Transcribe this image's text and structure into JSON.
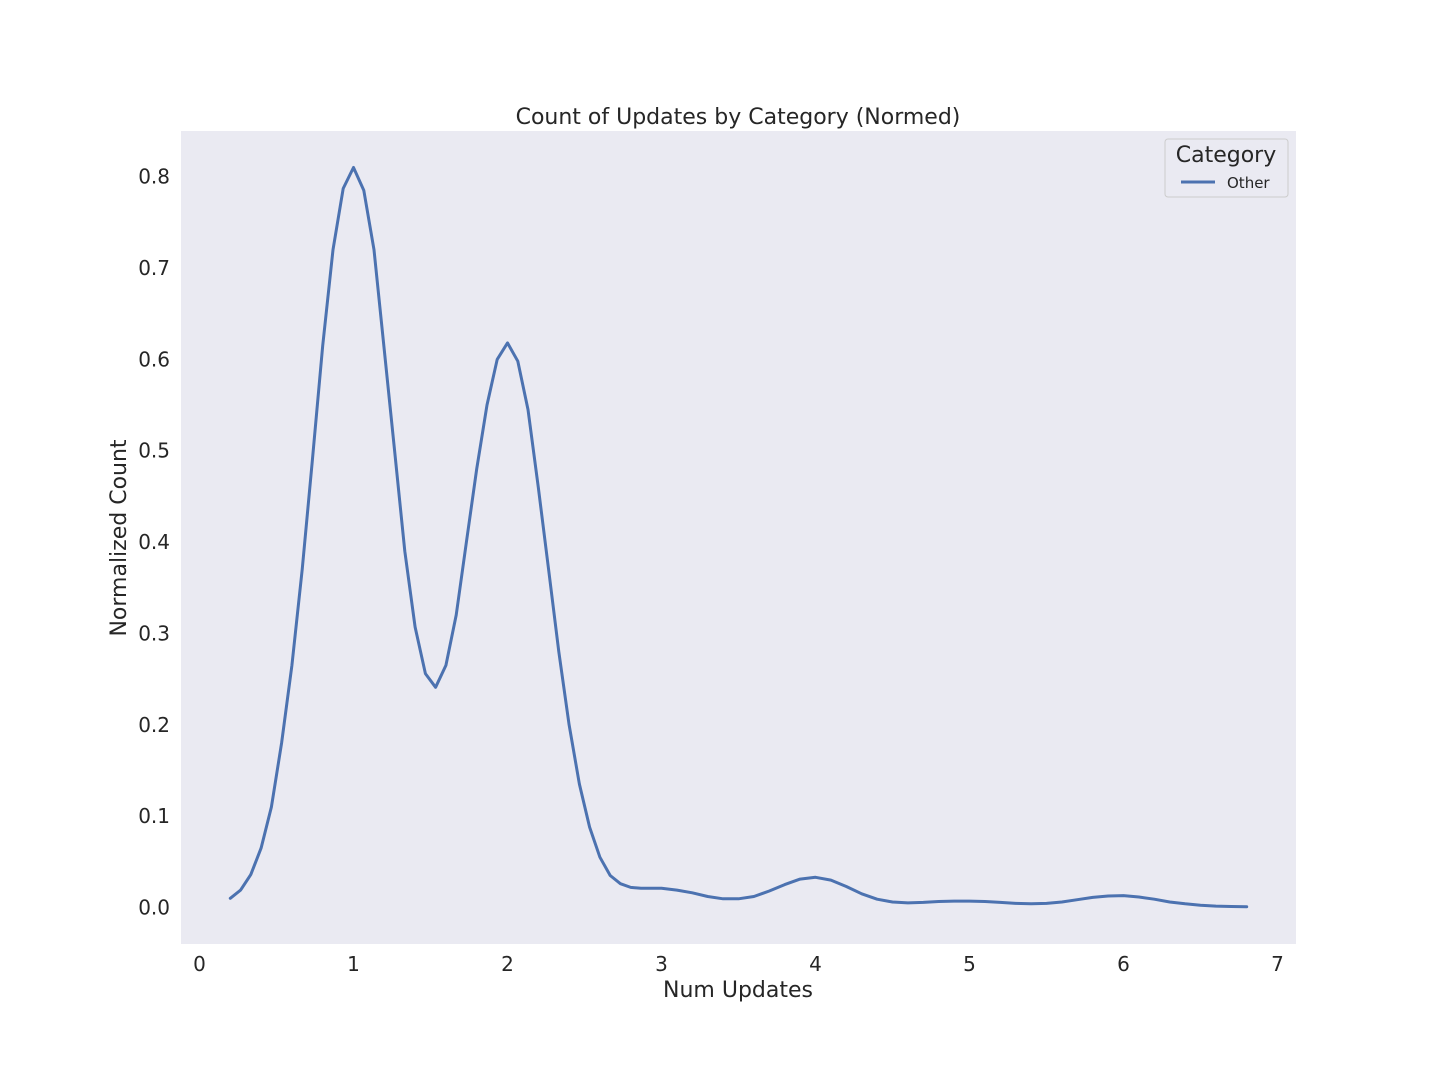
{
  "chart_data": {
    "type": "line",
    "title": "Count of Updates by Category (Normed)",
    "xlabel": "Num Updates",
    "ylabel": "Normalized Count",
    "xlim": [
      -0.12,
      7.12
    ],
    "ylim": [
      -0.04,
      0.85
    ],
    "xticks": [
      0,
      1,
      2,
      3,
      4,
      5,
      6,
      7
    ],
    "xtick_labels": [
      "0",
      "1",
      "2",
      "3",
      "4",
      "5",
      "6",
      "7"
    ],
    "yticks": [
      0.0,
      0.1,
      0.2,
      0.3,
      0.4,
      0.5,
      0.6,
      0.7,
      0.8
    ],
    "ytick_labels": [
      "0.0",
      "0.1",
      "0.2",
      "0.3",
      "0.4",
      "0.5",
      "0.6",
      "0.7",
      "0.8"
    ],
    "grid": false,
    "legend": {
      "title": "Category",
      "placement": "top-right"
    },
    "colors": {
      "plot_background": "#eaeaf2",
      "series": "#4c72b0",
      "text": "#262626"
    },
    "series": [
      {
        "name": "Other",
        "x": [
          0.2,
          0.267,
          0.333,
          0.4,
          0.467,
          0.533,
          0.6,
          0.667,
          0.733,
          0.8,
          0.867,
          0.933,
          1.0,
          1.067,
          1.133,
          1.2,
          1.267,
          1.333,
          1.4,
          1.467,
          1.533,
          1.6,
          1.667,
          1.733,
          1.8,
          1.867,
          1.933,
          2.0,
          2.067,
          2.133,
          2.2,
          2.267,
          2.333,
          2.4,
          2.467,
          2.533,
          2.6,
          2.667,
          2.733,
          2.8,
          2.867,
          2.933,
          3.0,
          3.1,
          3.2,
          3.3,
          3.4,
          3.5,
          3.6,
          3.7,
          3.8,
          3.9,
          4.0,
          4.1,
          4.2,
          4.3,
          4.4,
          4.5,
          4.6,
          4.7,
          4.8,
          4.9,
          5.0,
          5.1,
          5.2,
          5.3,
          5.4,
          5.5,
          5.6,
          5.7,
          5.8,
          5.9,
          6.0,
          6.1,
          6.2,
          6.3,
          6.4,
          6.5,
          6.6,
          6.7,
          6.8
        ],
        "y": [
          0.01,
          0.019,
          0.036,
          0.065,
          0.11,
          0.18,
          0.265,
          0.37,
          0.49,
          0.615,
          0.72,
          0.787,
          0.81,
          0.785,
          0.72,
          0.61,
          0.5,
          0.39,
          0.307,
          0.256,
          0.241,
          0.265,
          0.32,
          0.4,
          0.48,
          0.55,
          0.6,
          0.618,
          0.598,
          0.545,
          0.46,
          0.37,
          0.28,
          0.2,
          0.135,
          0.088,
          0.055,
          0.035,
          0.026,
          0.022,
          0.021,
          0.021,
          0.021,
          0.019,
          0.016,
          0.012,
          0.0095,
          0.0095,
          0.012,
          0.018,
          0.025,
          0.031,
          0.033,
          0.03,
          0.023,
          0.015,
          0.009,
          0.006,
          0.005,
          0.0055,
          0.0065,
          0.007,
          0.007,
          0.0065,
          0.0055,
          0.0045,
          0.004,
          0.0045,
          0.006,
          0.0085,
          0.011,
          0.0125,
          0.013,
          0.0115,
          0.009,
          0.006,
          0.004,
          0.0025,
          0.0015,
          0.001,
          0.0008
        ]
      }
    ]
  }
}
